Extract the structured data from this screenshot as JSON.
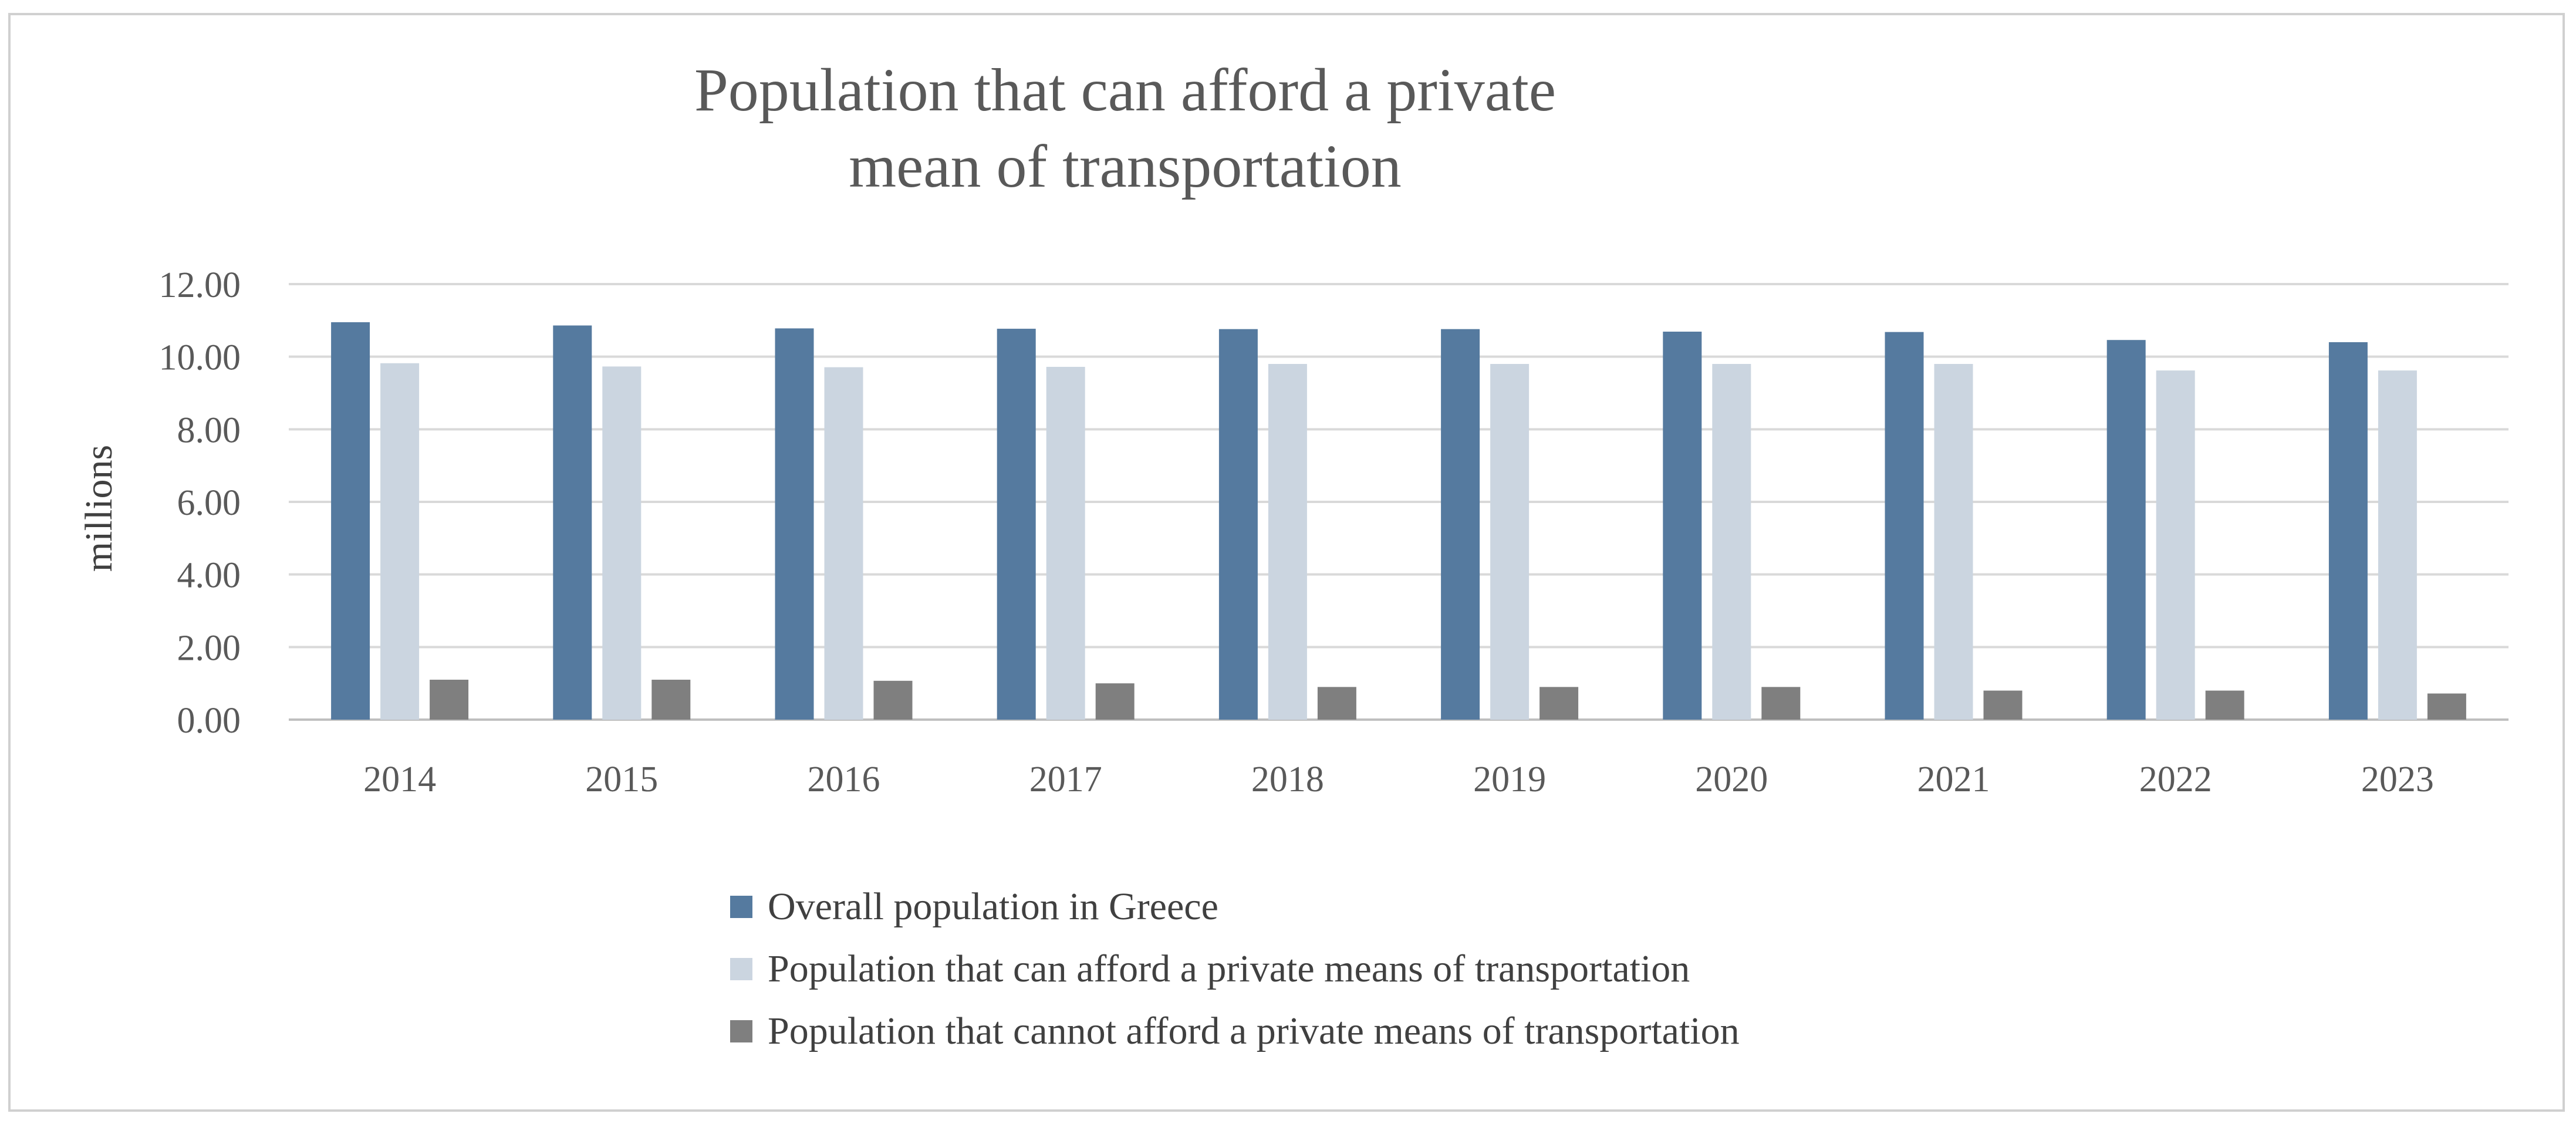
{
  "chart_data": {
    "type": "bar",
    "title_lines": [
      "Population that can afford a private",
      "mean of transportation"
    ],
    "xlabel": "",
    "ylabel": "millions",
    "ylim": [
      0,
      12
    ],
    "yticks": [
      "0.00",
      "2.00",
      "4.00",
      "6.00",
      "8.00",
      "10.00",
      "12.00"
    ],
    "ytick_values": [
      0,
      2,
      4,
      6,
      8,
      10,
      12
    ],
    "grid": true,
    "legend_position": "bottom",
    "categories": [
      "2014",
      "2015",
      "2016",
      "2017",
      "2018",
      "2019",
      "2020",
      "2021",
      "2022",
      "2023"
    ],
    "series": [
      {
        "name": "Overall population in Greece",
        "color": "#557a9f",
        "values": [
          10.95,
          10.86,
          10.78,
          10.77,
          10.76,
          10.76,
          10.69,
          10.68,
          10.46,
          10.4
        ]
      },
      {
        "name": "Population that can afford a private means of transportation",
        "color": "#cbd5e0",
        "values": [
          9.82,
          9.73,
          9.71,
          9.72,
          9.8,
          9.8,
          9.8,
          9.8,
          9.62,
          9.62
        ]
      },
      {
        "name": "Population that cannot afford a private means of transportation",
        "color": "#7f7f7f",
        "values": [
          1.1,
          1.1,
          1.07,
          1.0,
          0.9,
          0.9,
          0.9,
          0.8,
          0.8,
          0.72
        ]
      }
    ]
  }
}
